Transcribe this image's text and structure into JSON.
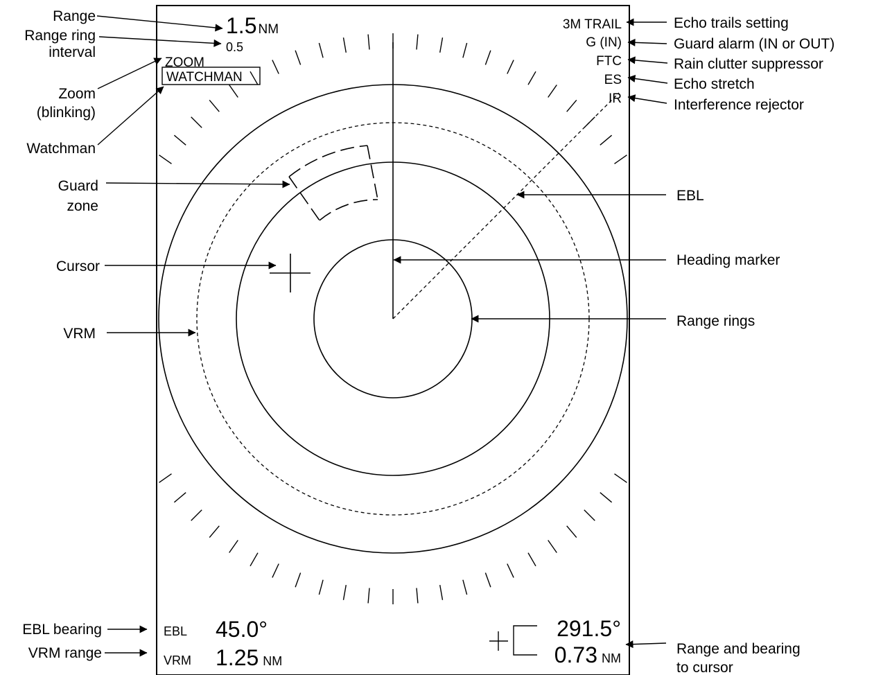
{
  "screen": {
    "range_value": "1.5",
    "range_unit": "NM",
    "ring_interval_value": "0.5",
    "zoom_text": "ZOOM",
    "watchman_text": "WATCHMAN",
    "trail_text": "3M TRAIL",
    "guard_text": "G (IN)",
    "ftc_text": "FTC",
    "es_text": "ES",
    "ir_text": "IR",
    "ebl_label": "EBL",
    "ebl_value": "45.0°",
    "vrm_label": "VRM",
    "vrm_value": "1.25",
    "vrm_unit": "NM",
    "cursor_bearing": "291.5°",
    "cursor_range": "0.73",
    "cursor_unit": "NM"
  },
  "callouts": {
    "range": "Range",
    "ring_interval_1": "Range ring",
    "ring_interval_2": "interval",
    "zoom_1": "Zoom",
    "zoom_2": "(blinking)",
    "watchman": "Watchman",
    "guard_zone_1": "Guard",
    "guard_zone_2": "zone",
    "cursor": "Cursor",
    "vrm": "VRM",
    "ebl_bearing": "EBL bearing",
    "vrm_range": "VRM range",
    "echo_trails": "Echo trails setting",
    "guard_alarm": "Guard alarm (IN or OUT)",
    "rain_clutter": "Rain clutter suppressor",
    "echo_stretch": "Echo stretch",
    "interference": "Interference rejector",
    "ebl": "EBL",
    "heading_marker": "Heading marker",
    "range_rings": "Range rings",
    "range_bearing_1": "Range and bearing",
    "range_bearing_2": "to cursor"
  }
}
